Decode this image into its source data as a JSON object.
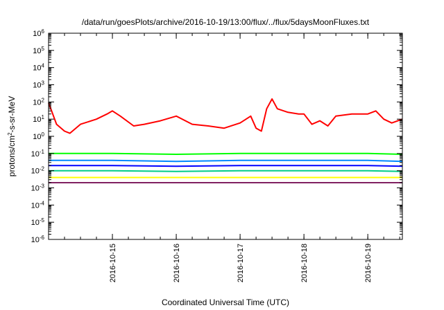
{
  "chart_data": {
    "type": "line",
    "title": "/data/run/goesPlots/archive/2016-10-19/13:00/flux/../flux/5daysMoonFluxes.txt",
    "xlabel": "Coordinated Universal Time (UTC)",
    "ylabel_parts": [
      "protons/cm",
      "2",
      "-s-sr-MeV"
    ],
    "x_range": [
      "2016-10-14 00:00",
      "2016-10-19 13:00"
    ],
    "x_ticks": [
      "2016-10-15",
      "2016-10-16",
      "2016-10-17",
      "2016-10-18",
      "2016-10-19"
    ],
    "y_scale": "log",
    "y_range": [
      1e-06,
      1000000.0
    ],
    "y_ticks": [
      {
        "base": "10",
        "exp": "-6"
      },
      {
        "base": "10",
        "exp": "-5"
      },
      {
        "base": "10",
        "exp": "-4"
      },
      {
        "base": "10",
        "exp": "-3"
      },
      {
        "base": "10",
        "exp": "-2"
      },
      {
        "base": "10",
        "exp": "-1"
      },
      {
        "base": "10",
        "exp": "0"
      },
      {
        "base": "10",
        "exp": "1"
      },
      {
        "base": "10",
        "exp": "2"
      },
      {
        "base": "10",
        "exp": "3"
      },
      {
        "base": "10",
        "exp": "4"
      },
      {
        "base": "10",
        "exp": "5"
      },
      {
        "base": "10",
        "exp": "6"
      }
    ],
    "grid": false,
    "legend": "none",
    "series": [
      {
        "color": "#ff0000",
        "x": [
          "2016-10-14 00:00",
          "2016-10-14 03:00",
          "2016-10-14 06:00",
          "2016-10-14 08:00",
          "2016-10-14 12:00",
          "2016-10-14 18:00",
          "2016-10-14 22:00",
          "2016-10-15 00:00",
          "2016-10-15 03:00",
          "2016-10-15 08:00",
          "2016-10-15 12:00",
          "2016-10-15 18:00",
          "2016-10-16 00:00",
          "2016-10-16 06:00",
          "2016-10-16 12:00",
          "2016-10-16 18:00",
          "2016-10-17 00:00",
          "2016-10-17 04:00",
          "2016-10-17 06:00",
          "2016-10-17 08:00",
          "2016-10-17 10:00",
          "2016-10-17 12:00",
          "2016-10-17 14:00",
          "2016-10-17 18:00",
          "2016-10-17 22:00",
          "2016-10-18 00:00",
          "2016-10-18 03:00",
          "2016-10-18 06:00",
          "2016-10-18 09:00",
          "2016-10-18 12:00",
          "2016-10-18 18:00",
          "2016-10-19 00:00",
          "2016-10-19 03:00",
          "2016-10-19 06:00",
          "2016-10-19 09:00",
          "2016-10-19 13:00"
        ],
        "y": [
          90,
          5,
          2,
          1.5,
          5,
          10,
          20,
          30,
          15,
          4,
          5,
          8,
          15,
          5,
          4,
          3,
          6,
          15,
          3,
          2,
          40,
          150,
          40,
          25,
          20,
          20,
          5,
          8,
          4,
          15,
          20,
          20,
          30,
          10,
          6,
          10
        ]
      },
      {
        "color": "#00ff00",
        "x": [
          "2016-10-14 00:00",
          "2016-10-15 00:00",
          "2016-10-16 00:00",
          "2016-10-17 00:00",
          "2016-10-18 00:00",
          "2016-10-19 00:00",
          "2016-10-19 13:00"
        ],
        "y": [
          0.1,
          0.1,
          0.09,
          0.1,
          0.1,
          0.1,
          0.09
        ]
      },
      {
        "color": "#0088ff",
        "x": [
          "2016-10-14 00:00",
          "2016-10-15 00:00",
          "2016-10-16 00:00",
          "2016-10-17 00:00",
          "2016-10-18 00:00",
          "2016-10-19 00:00",
          "2016-10-19 13:00"
        ],
        "y": [
          0.04,
          0.04,
          0.035,
          0.04,
          0.04,
          0.04,
          0.035
        ]
      },
      {
        "color": "#0000ff",
        "x": [
          "2016-10-14 00:00",
          "2016-10-15 00:00",
          "2016-10-16 00:00",
          "2016-10-17 00:00",
          "2016-10-18 00:00",
          "2016-10-19 00:00",
          "2016-10-19 13:00"
        ],
        "y": [
          0.02,
          0.02,
          0.018,
          0.02,
          0.02,
          0.02,
          0.018
        ]
      },
      {
        "color": "#00cc88",
        "x": [
          "2016-10-14 00:00",
          "2016-10-15 00:00",
          "2016-10-16 00:00",
          "2016-10-17 00:00",
          "2016-10-18 00:00",
          "2016-10-19 00:00",
          "2016-10-19 13:00"
        ],
        "y": [
          0.01,
          0.01,
          0.009,
          0.01,
          0.01,
          0.01,
          0.009
        ]
      },
      {
        "color": "#ffff00",
        "x": [
          "2016-10-14 00:00",
          "2016-10-15 00:00",
          "2016-10-16 00:00",
          "2016-10-17 00:00",
          "2016-10-18 00:00",
          "2016-10-19 00:00",
          "2016-10-19 13:00"
        ],
        "y": [
          0.004,
          0.004,
          0.004,
          0.004,
          0.004,
          0.004,
          0.004
        ]
      },
      {
        "color": "#802060",
        "x": [
          "2016-10-14 00:00",
          "2016-10-15 00:00",
          "2016-10-16 00:00",
          "2016-10-17 00:00",
          "2016-10-18 00:00",
          "2016-10-19 00:00",
          "2016-10-19 13:00"
        ],
        "y": [
          0.002,
          0.002,
          0.002,
          0.002,
          0.002,
          0.002,
          0.002
        ]
      }
    ]
  }
}
